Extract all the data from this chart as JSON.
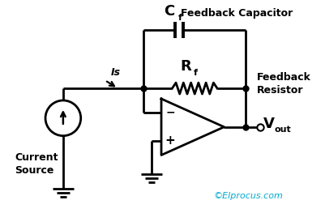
{
  "bg_color": "#ffffff",
  "line_color": "#000000",
  "text_color_cyan": "#00aacc",
  "title_cf": "C",
  "title_cf_sub": "f",
  "title_feedback_cap": "Feedback Capacitor",
  "title_rf": "R",
  "title_rf_sub": "f",
  "title_feedback_res": "Feedback\nResistor",
  "title_is": "Is",
  "title_current_source": "Current\nSource",
  "title_vout": "V",
  "title_vout_sub": "out",
  "title_copyright": "©Elprocus.com",
  "figsize": [
    4.02,
    2.63
  ],
  "dpi": 100
}
